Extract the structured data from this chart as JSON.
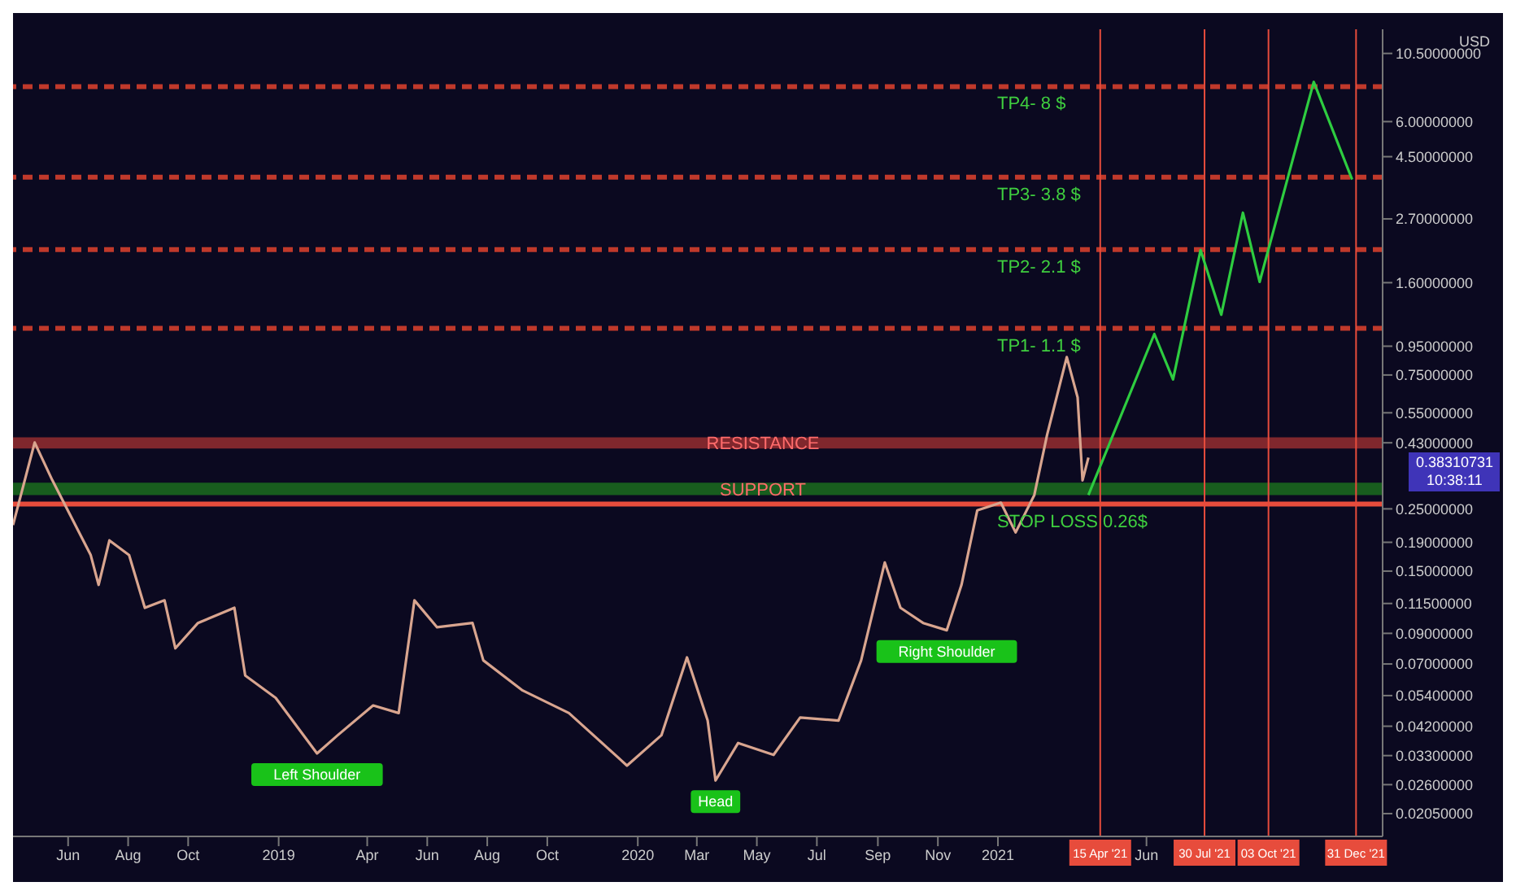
{
  "chart_data": {
    "type": "line",
    "ylabel": "USD",
    "log": "y",
    "marker": "none",
    "xlim": [
      "2018-04-06",
      "2022-01-27"
    ],
    "ylim": [
      0.017,
      12.8
    ],
    "xticks": [
      {
        "value": "2018-06-01",
        "label": "Jun"
      },
      {
        "value": "2018-08-01",
        "label": "Aug"
      },
      {
        "value": "2018-10-01",
        "label": "Oct"
      },
      {
        "value": "2019-01-01",
        "label": "2019"
      },
      {
        "value": "2019-04-01",
        "label": "Apr"
      },
      {
        "value": "2019-06-01",
        "label": "Jun"
      },
      {
        "value": "2019-08-01",
        "label": "Aug"
      },
      {
        "value": "2019-10-01",
        "label": "Oct"
      },
      {
        "value": "2020-01-01",
        "label": "2020"
      },
      {
        "value": "2020-03-01",
        "label": "Mar"
      },
      {
        "value": "2020-05-01",
        "label": "May"
      },
      {
        "value": "2020-07-01",
        "label": "Jul"
      },
      {
        "value": "2020-09-01",
        "label": "Sep"
      },
      {
        "value": "2020-11-01",
        "label": "Nov"
      },
      {
        "value": "2021-01-01",
        "label": "2021"
      },
      {
        "value": "2021-06-01",
        "label": "Jun"
      }
    ],
    "yticks": [
      {
        "value": 0.0205,
        "label": "0.02050000"
      },
      {
        "value": 0.026,
        "label": "0.02600000"
      },
      {
        "value": 0.033,
        "label": "0.03300000"
      },
      {
        "value": 0.042,
        "label": "0.04200000"
      },
      {
        "value": 0.054,
        "label": "0.05400000"
      },
      {
        "value": 0.07,
        "label": "0.07000000"
      },
      {
        "value": 0.09,
        "label": "0.09000000"
      },
      {
        "value": 0.115,
        "label": "0.11500000"
      },
      {
        "value": 0.15,
        "label": "0.15000000"
      },
      {
        "value": 0.19,
        "label": "0.19000000"
      },
      {
        "value": 0.25,
        "label": "0.25000000"
      },
      {
        "value": 0.43,
        "label": "0.43000000"
      },
      {
        "value": 0.55,
        "label": "0.55000000"
      },
      {
        "value": 0.75,
        "label": "0.75000000"
      },
      {
        "value": 0.95,
        "label": "0.95000000"
      },
      {
        "value": 1.6,
        "label": "1.60000000"
      },
      {
        "value": 2.7,
        "label": "2.70000000"
      },
      {
        "value": 4.5,
        "label": "4.50000000"
      },
      {
        "value": 6,
        "label": "6.00000000"
      },
      {
        "value": 10.5,
        "label": "10.50000000"
      }
    ],
    "series": [
      {
        "color": "#d9a58f",
        "x": [
          "2018-04-06",
          "2018-04-28",
          "2018-05-16",
          "2018-06-24",
          "2018-07-02",
          "2018-07-13",
          "2018-08-02",
          "2018-08-18",
          "2018-09-07",
          "2018-09-18",
          "2018-10-11",
          "2018-11-17",
          "2018-11-28",
          "2018-12-29",
          "2019-02-09",
          "2019-03-02",
          "2019-04-07",
          "2019-05-03",
          "2019-05-19",
          "2019-06-11",
          "2019-07-17",
          "2019-07-28",
          "2019-09-06",
          "2019-10-23",
          "2019-12-21",
          "2020-01-25",
          "2020-02-20",
          "2020-03-12",
          "2020-03-20",
          "2020-04-12",
          "2020-05-18",
          "2020-06-14",
          "2020-07-23",
          "2020-08-15",
          "2020-09-08",
          "2020-09-24",
          "2020-10-17",
          "2020-11-10",
          "2020-11-25",
          "2020-12-11",
          "2021-01-04",
          "2021-01-19",
          "2021-02-07",
          "2021-02-20",
          "2021-03-12",
          "2021-03-23",
          "2021-03-28",
          "2021-04-03"
        ],
        "values": [
          0.219,
          0.431,
          0.316,
          0.171,
          0.134,
          0.193,
          0.171,
          0.111,
          0.118,
          0.0796,
          0.098,
          0.111,
          0.0637,
          0.053,
          0.0336,
          0.039,
          0.0498,
          0.0468,
          0.118,
          0.0946,
          0.098,
          0.0721,
          0.0563,
          0.0468,
          0.0304,
          0.039,
          0.0739,
          0.044,
          0.0269,
          0.0366,
          0.0332,
          0.0451,
          0.044,
          0.0721,
          0.161,
          0.111,
          0.098,
          0.0923,
          0.134,
          0.247,
          0.263,
          0.206,
          0.28,
          0.459,
          0.869,
          0.624,
          0.316,
          0.381
        ]
      },
      {
        "color": "#2ecc40",
        "x": [
          "2021-04-03",
          "2021-06-09",
          "2021-06-28",
          "2021-07-26",
          "2021-08-16",
          "2021-09-07",
          "2021-09-24",
          "2021-11-18",
          "2021-12-27"
        ],
        "values": [
          0.28,
          1.05,
          0.723,
          2.09,
          1.23,
          2.84,
          1.61,
          8.31,
          3.73
        ]
      }
    ],
    "ref_lines": [
      {
        "axis": "y",
        "value": 8,
        "label": "TP4- 8 $",
        "color": "#c0392b",
        "line_style": "dashed"
      },
      {
        "axis": "y",
        "value": 3.8,
        "label": "TP3- 3.8 $",
        "color": "#c0392b",
        "line_style": "dashed"
      },
      {
        "axis": "y",
        "value": 2.1,
        "label": "TP2- 2.1 $",
        "color": "#c0392b",
        "line_style": "dashed"
      },
      {
        "axis": "y",
        "value": 1.1,
        "label": "TP1- 1.1 $",
        "color": "#c0392b",
        "line_style": "dashed"
      },
      {
        "axis": "y",
        "value": 0.26,
        "label": "STOP LOSS 0.26$",
        "color": "#e74c3c",
        "line_style": "solid"
      },
      {
        "axis": "x",
        "value": "2021-04-15",
        "label": "15 Apr '21",
        "color": "#e74c3c",
        "line_style": "solid"
      },
      {
        "axis": "x",
        "value": "2021-07-30",
        "label": "30 Jul '21",
        "color": "#e74c3c",
        "line_style": "solid"
      },
      {
        "axis": "x",
        "value": "2021-10-03",
        "label": "03 Oct '21",
        "color": "#e74c3c",
        "line_style": "solid"
      },
      {
        "axis": "x",
        "value": "2021-12-31",
        "label": "31 Dec '21",
        "color": "#e74c3c",
        "line_style": "solid"
      }
    ],
    "bands": [
      {
        "axis": "y",
        "from": 0.41,
        "to": 0.45,
        "label": "RESISTANCE",
        "color": "#a83232"
      },
      {
        "axis": "y",
        "from": 0.28,
        "to": 0.31,
        "label": "SUPPORT",
        "color": "#1e7a1e"
      }
    ],
    "annotations": [
      {
        "text": "Left Shoulder",
        "x": "2019-02-09",
        "y": 0.0336
      },
      {
        "text": "Head",
        "x": "2020-03-20",
        "y": 0.0269
      },
      {
        "text": "Right Shoulder",
        "x": "2020-11-10",
        "y": 0.0923
      },
      "0.38310731",
      "10:38:11"
    ]
  }
}
